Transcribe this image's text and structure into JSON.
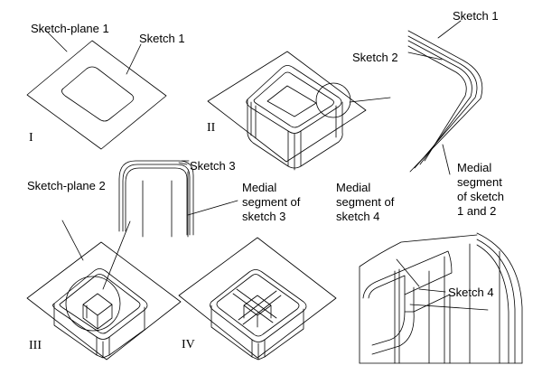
{
  "labels": {
    "sketch_plane_1": "Sketch-plane 1",
    "sketch_1_top": "Sketch 1",
    "sketch_1_detail": "Sketch 1",
    "sketch_2": "Sketch 2",
    "medial_12_line1": "Medial",
    "medial_12_line2": "segment",
    "medial_12_line3": "of sketch",
    "medial_12_line4": "1 and 2",
    "sketch_3": "Sketch 3",
    "sketch_plane_2": "Sketch-plane 2",
    "medial_3_line1": "Medial",
    "medial_3_line2": "segment of",
    "medial_3_line3": "sketch 3",
    "medial_4_line1": "Medial",
    "medial_4_line2": "segment of",
    "medial_4_line3": "sketch 4",
    "sketch_4": "Sketch 4"
  },
  "panels": {
    "panel_1": "I",
    "panel_2": "II",
    "panel_3": "III",
    "panel_4": "IV"
  }
}
